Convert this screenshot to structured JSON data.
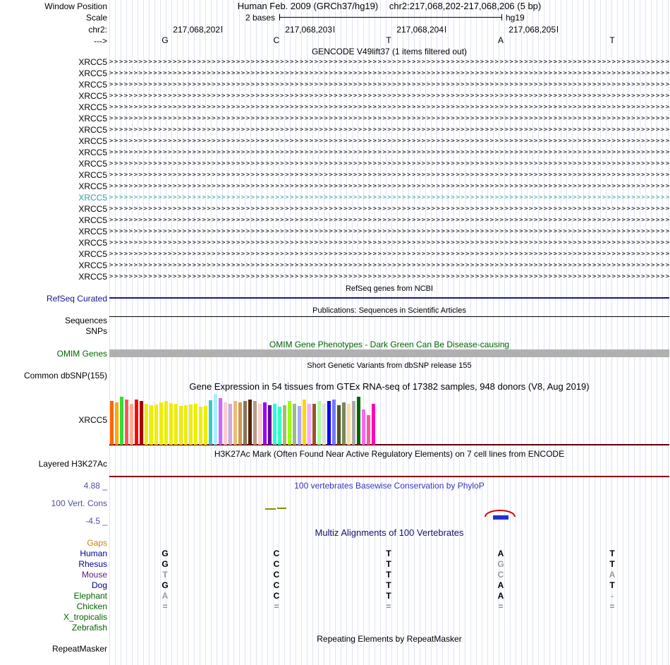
{
  "header": {
    "assembly_title": "Human Feb. 2009 (GRCh37/hg19)",
    "position_title": "chr2:217,068,202-217,068,206 (5 bp)",
    "window_position_label": "Window Position",
    "scale_label": "Scale",
    "scale_value": "2 bases",
    "scale_assembly": "hg19",
    "chrom_label": "chr2:",
    "strand_label": "--->",
    "coordinates": [
      "217,068,202",
      "217,068,203",
      "217,068,204",
      "217,068,205"
    ],
    "reference_bases": [
      "G",
      "C",
      "T",
      "A",
      "T"
    ]
  },
  "tracks": {
    "gencode": {
      "title": "GENCODE V49lift37 (1 items filtered out)",
      "gene_label": "XRCC5",
      "row_count": 20,
      "highlight_row_index": 12,
      "row_color": "#000000",
      "highlight_color": "#2f9e9e",
      "arrow_char": ">"
    },
    "refseq": {
      "title": "RefSeq genes from NCBI",
      "label": "RefSeq Curated",
      "color": "#16168b"
    },
    "publications": {
      "title": "Publications: Sequences in Scientific Articles",
      "label": "Sequences"
    },
    "snps": {
      "label": "SNPs"
    },
    "omim": {
      "title": "OMIM Gene Phenotypes - Dark Green Can Be Disease-causing",
      "label": "OMIM Genes",
      "color": "#006400",
      "bar_color": "#b0b0b0"
    },
    "dbsnp": {
      "title": "Short Genetic Variants from dbSNP release 155",
      "label": "Common dbSNP(155)"
    },
    "gtex": {
      "title": "Gene Expression in 54 tissues from GTEx RNA-seq of 17382 samples, 948 donors (V8, Aug 2019)",
      "label": "XRCC5",
      "baseline_color": "#600000"
    },
    "h3k27ac": {
      "title": "H3K27Ac Mark (Often Found Near Active Regulatory Elements) on 7 cell lines from ENCODE",
      "label": "Layered H3K27Ac",
      "line_color": "#8b0000"
    },
    "phylop": {
      "title": "100 vertebrates Basewise Conservation by PhyloP",
      "label": "100 Vert. Cons",
      "max_label": "4.88 _",
      "min_label": "-4.5 _",
      "title_color": "#3434c0",
      "label_color": "#4f4f9f"
    },
    "multiz": {
      "title": "Multiz Alignments of 100 Vertebrates",
      "gaps_label": "Gaps",
      "gaps_color": "#c8860a",
      "species": [
        {
          "name": "Human",
          "name_color": "#00008b",
          "letters": [
            {
              "c": "G",
              "s": "n"
            },
            {
              "c": "C",
              "s": "n"
            },
            {
              "c": "T",
              "s": "n"
            },
            {
              "c": "A",
              "s": "n"
            },
            {
              "c": "T",
              "s": "n"
            }
          ]
        },
        {
          "name": "Rhesus",
          "name_color": "#00008b",
          "letters": [
            {
              "c": "G",
              "s": "n"
            },
            {
              "c": "C",
              "s": "n"
            },
            {
              "c": "T",
              "s": "n"
            },
            {
              "c": "G",
              "s": "d"
            },
            {
              "c": "T",
              "s": "n"
            }
          ]
        },
        {
          "name": "Mouse",
          "name_color": "#551a8b",
          "letters": [
            {
              "c": "T",
              "s": "d"
            },
            {
              "c": "C",
              "s": "n"
            },
            {
              "c": "T",
              "s": "n"
            },
            {
              "c": "C",
              "s": "d"
            },
            {
              "c": "A",
              "s": "d"
            }
          ]
        },
        {
          "name": "Dog",
          "name_color": "#00008b",
          "letters": [
            {
              "c": "G",
              "s": "n"
            },
            {
              "c": "C",
              "s": "n"
            },
            {
              "c": "T",
              "s": "n"
            },
            {
              "c": "A",
              "s": "n"
            },
            {
              "c": "T",
              "s": "n"
            }
          ]
        },
        {
          "name": "Elephant",
          "name_color": "#006400",
          "letters": [
            {
              "c": "A",
              "s": "d"
            },
            {
              "c": "C",
              "s": "n"
            },
            {
              "c": "T",
              "s": "n"
            },
            {
              "c": "A",
              "s": "n"
            },
            {
              "c": "-",
              "s": "d"
            }
          ]
        },
        {
          "name": "Chicken",
          "name_color": "#006400",
          "letters": [
            {
              "c": "=",
              "s": "e"
            },
            {
              "c": "=",
              "s": "e"
            },
            {
              "c": "=",
              "s": "e"
            },
            {
              "c": "=",
              "s": "e"
            },
            {
              "c": "=",
              "s": "e"
            }
          ]
        },
        {
          "name": "X_tropicalis",
          "name_color": "#006400",
          "letters": [
            {
              "c": "",
              "s": "n"
            },
            {
              "c": "",
              "s": "n"
            },
            {
              "c": "",
              "s": "n"
            },
            {
              "c": "",
              "s": "n"
            },
            {
              "c": "",
              "s": "n"
            }
          ]
        },
        {
          "name": "Zebrafish",
          "name_color": "#006400",
          "letters": [
            {
              "c": "",
              "s": "n"
            },
            {
              "c": "",
              "s": "n"
            },
            {
              "c": "",
              "s": "n"
            },
            {
              "c": "",
              "s": "n"
            },
            {
              "c": "",
              "s": "n"
            }
          ]
        }
      ]
    },
    "repeatmasker": {
      "title": "Repeating Elements by RepeatMasker",
      "label": "RepeatMasker"
    }
  },
  "chart_data": {
    "type": "bar",
    "title": "Gene Expression in 54 tissues from GTEx RNA-seq of 17382 samples, 948 donors (V8, Aug 2019)",
    "series_label": "XRCC5",
    "units": "relative expression (approximate bar heights in px, no numeric axis shown)",
    "colors": [
      "#FF6600",
      "#FFAA00",
      "#33DD33",
      "#FF5555",
      "#FFAA99",
      "#FF0000",
      "#AA0000",
      "#EEEE00",
      "#EEEE00",
      "#EEEE00",
      "#EEEE00",
      "#EEEE00",
      "#EEEE00",
      "#EEEE00",
      "#EEEE00",
      "#EEEE00",
      "#EEEE00",
      "#EEEE00",
      "#EEEE00",
      "#EEEE00",
      "#33CCCC",
      "#AAEEFF",
      "#CC66FF",
      "#FFCCCC",
      "#CCAADD",
      "#EEBB77",
      "#CC9955",
      "#8B7355",
      "#552200",
      "#BB9988",
      "#FFCCCC",
      "#9900FF",
      "#660099",
      "#22FFDD",
      "#33FFC2",
      "#AABB66",
      "#99FF00",
      "#99BB88",
      "#AAAAFF",
      "#FFD700",
      "#FFAAFF",
      "#995522",
      "#AAFF99",
      "#DDDDDD",
      "#0000FF",
      "#7777FF",
      "#555522",
      "#778855",
      "#FFDD99",
      "#AAAAAA",
      "#006600",
      "#FF66FF",
      "#FF5599",
      "#FF00BB"
    ],
    "values": [
      62,
      60,
      68,
      64,
      58,
      64,
      62,
      58,
      56,
      57,
      60,
      62,
      59,
      58,
      55,
      56,
      57,
      58,
      54,
      55,
      63,
      72,
      66,
      60,
      58,
      62,
      60,
      62,
      64,
      62,
      58,
      60,
      56,
      58,
      54,
      56,
      62,
      58,
      55,
      64,
      58,
      58,
      62,
      58,
      62,
      64,
      56,
      60,
      58,
      62,
      68,
      50,
      42,
      58
    ]
  }
}
